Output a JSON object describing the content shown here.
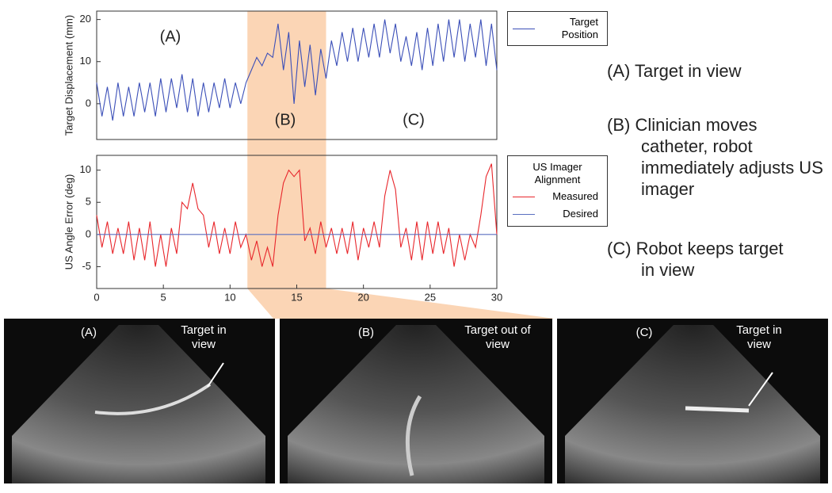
{
  "chart_data": [
    {
      "type": "line",
      "y_label": "Target Displacement (mm)",
      "x": [
        0,
        0.4,
        0.8,
        1.2,
        1.6,
        2,
        2.4,
        2.8,
        3.2,
        3.6,
        4,
        4.4,
        4.8,
        5.2,
        5.6,
        6,
        6.4,
        6.8,
        7.2,
        7.6,
        8,
        8.4,
        8.8,
        9.2,
        9.6,
        10,
        10.4,
        10.8,
        11.2,
        11.6,
        12,
        12.4,
        12.8,
        13.2,
        13.6,
        14,
        14.4,
        14.8,
        15.2,
        15.6,
        16,
        16.4,
        16.8,
        17.2,
        17.6,
        18,
        18.4,
        18.8,
        19.2,
        19.6,
        20,
        20.4,
        20.8,
        21.2,
        21.6,
        22,
        22.4,
        22.8,
        23.2,
        23.6,
        24,
        24.4,
        24.8,
        25.2,
        25.6,
        26,
        26.4,
        26.8,
        27.2,
        27.6,
        28,
        28.4,
        28.8,
        29.2,
        29.6,
        30
      ],
      "series": [
        {
          "name": "Target Position",
          "color": "#3b4fb8",
          "values": [
            5,
            -3,
            4,
            -4,
            5,
            -3,
            4,
            -3,
            5,
            -2,
            5,
            -3,
            6,
            -2,
            6,
            -1,
            7,
            -2,
            6,
            -3,
            5,
            -2,
            5,
            -1,
            6,
            -1,
            5,
            0,
            5,
            8,
            11,
            9,
            12,
            11,
            19,
            8,
            17,
            0,
            15,
            4,
            14,
            2,
            13,
            6,
            15,
            9,
            17,
            10,
            18,
            10,
            18,
            11,
            19,
            11,
            20,
            12,
            19,
            10,
            16,
            9,
            17,
            8,
            18,
            9,
            19,
            10,
            20,
            11,
            20,
            10,
            19,
            11,
            20,
            9,
            19,
            8
          ]
        }
      ],
      "xlim": [
        0,
        30
      ],
      "ylim": [
        -8.5,
        22
      ],
      "yticks": [
        0,
        10,
        20
      ],
      "highlight": [
        11.3,
        17.2
      ],
      "highlight_color": "#fbd5b5",
      "annotations": [
        "(A)",
        "(B)",
        "(C)"
      ]
    },
    {
      "type": "line",
      "y_label": "US Angle Error (deg)",
      "legend_title": "US Imager Alignment",
      "x": [
        0,
        0.4,
        0.8,
        1.2,
        1.6,
        2,
        2.4,
        2.8,
        3.2,
        3.6,
        4,
        4.4,
        4.8,
        5.2,
        5.6,
        6,
        6.4,
        6.8,
        7.2,
        7.6,
        8,
        8.4,
        8.8,
        9.2,
        9.6,
        10,
        10.4,
        10.8,
        11.2,
        11.6,
        12,
        12.4,
        12.8,
        13.2,
        13.6,
        14,
        14.4,
        14.8,
        15.2,
        15.6,
        16,
        16.4,
        16.8,
        17.2,
        17.6,
        18,
        18.4,
        18.8,
        19.2,
        19.6,
        20,
        20.4,
        20.8,
        21.2,
        21.6,
        22,
        22.4,
        22.8,
        23.2,
        23.6,
        24,
        24.4,
        24.8,
        25.2,
        25.6,
        26,
        26.4,
        26.8,
        27.2,
        27.6,
        28,
        28.4,
        28.8,
        29.2,
        29.6,
        30
      ],
      "series": [
        {
          "name": "Measured",
          "color": "#e8262b",
          "values": [
            3,
            -2,
            2,
            -3,
            1,
            -3,
            2,
            -4,
            1,
            -4,
            2,
            -5,
            0,
            -5,
            1,
            -3,
            5,
            4,
            8,
            4,
            3,
            -2,
            2,
            -3,
            1,
            -3,
            2,
            -2,
            0,
            -4,
            -1,
            -5,
            -2,
            -5,
            3,
            8,
            10,
            9,
            10,
            -1,
            1,
            -3,
            2,
            -2,
            1,
            -3,
            1,
            -3,
            2,
            -4,
            1,
            -2,
            2,
            -2,
            6,
            10,
            7,
            -2,
            1,
            -4,
            2,
            -4,
            2,
            -3,
            2,
            -3,
            1,
            -5,
            0,
            -4,
            0,
            -2,
            3,
            9,
            11,
            0
          ]
        },
        {
          "name": "Desired",
          "color": "#5a6fc0",
          "x": [
            0,
            30
          ],
          "values": [
            0,
            0
          ]
        }
      ],
      "xlim": [
        0,
        30
      ],
      "ylim": [
        -8.4,
        12.3
      ],
      "yticks": [
        -5,
        0,
        5,
        10
      ],
      "xticks": [
        0,
        5,
        10,
        15,
        20,
        25,
        30
      ]
    }
  ],
  "descriptions": [
    "(A) Target in view",
    "(B) Clinician moves catheter, robot immediately adjusts US imager",
    "(C) Robot keeps target in view"
  ],
  "panels": [
    {
      "label": "(A)",
      "note": "Target in view"
    },
    {
      "label": "(B)",
      "note": "Target out of view"
    },
    {
      "label": "(C)",
      "note": "Target in view"
    }
  ]
}
